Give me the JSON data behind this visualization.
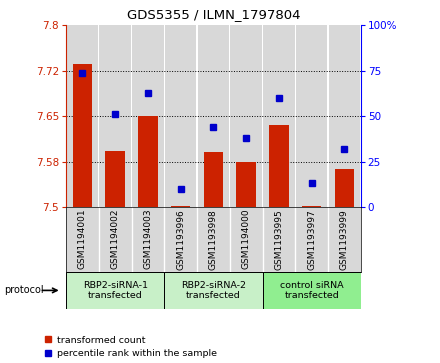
{
  "title": "GDS5355 / ILMN_1797804",
  "samples": [
    "GSM1194001",
    "GSM1194002",
    "GSM1194003",
    "GSM1193996",
    "GSM1193998",
    "GSM1194000",
    "GSM1193995",
    "GSM1193997",
    "GSM1193999"
  ],
  "red_values": [
    7.737,
    7.593,
    7.65,
    7.501,
    7.59,
    7.575,
    7.635,
    7.502,
    7.563
  ],
  "blue_values": [
    74,
    51,
    63,
    10,
    44,
    38,
    60,
    13,
    32
  ],
  "ylim_left": [
    7.5,
    7.8
  ],
  "ylim_right": [
    0,
    100
  ],
  "yticks_left": [
    7.5,
    7.575,
    7.65,
    7.725,
    7.8
  ],
  "yticks_right": [
    0,
    25,
    50,
    75,
    100
  ],
  "groups": [
    {
      "label": "RBP2-siRNA-1\ntransfected",
      "indices": [
        0,
        1,
        2
      ],
      "color": "#c8f0c8"
    },
    {
      "label": "RBP2-siRNA-2\ntransfected",
      "indices": [
        3,
        4,
        5
      ],
      "color": "#c8f0c8"
    },
    {
      "label": "control siRNA\ntransfected",
      "indices": [
        6,
        7,
        8
      ],
      "color": "#90ee90"
    }
  ],
  "bar_color": "#cc2200",
  "dot_color": "#0000cc",
  "bar_bg_color": "#d8d8d8",
  "legend_red": "transformed count",
  "legend_blue": "percentile rank within the sample",
  "protocol_label": "protocol"
}
